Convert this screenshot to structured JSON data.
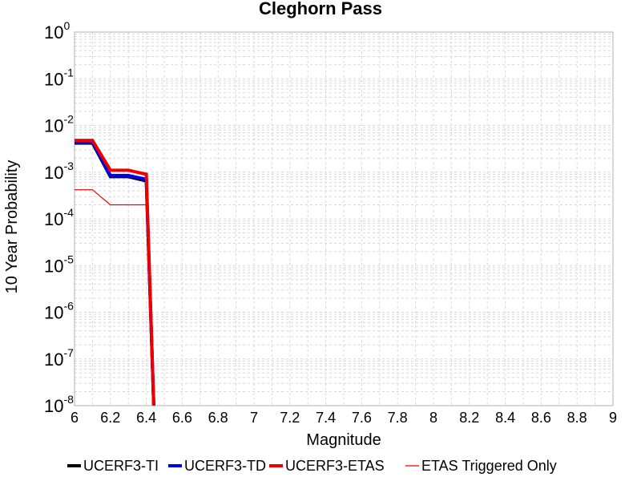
{
  "chart_data": {
    "type": "line",
    "title": "Cleghorn Pass",
    "xlabel": "Magnitude",
    "ylabel": "10 Year Probability",
    "xlim": [
      6,
      9
    ],
    "ylim": [
      1e-08,
      1
    ],
    "y_scale": "log",
    "grid": true,
    "legend_position": "bottom",
    "x_ticks": [
      "6",
      "6.2",
      "6.4",
      "6.6",
      "6.8",
      "7",
      "7.2",
      "7.4",
      "7.6",
      "7.8",
      "8",
      "8.2",
      "8.4",
      "8.6",
      "8.8",
      "9"
    ],
    "y_ticks": [
      {
        "base": "10",
        "exp": "0",
        "value": 1
      },
      {
        "base": "10",
        "exp": "-1",
        "value": 0.1
      },
      {
        "base": "10",
        "exp": "-2",
        "value": 0.01
      },
      {
        "base": "10",
        "exp": "-3",
        "value": 0.001
      },
      {
        "base": "10",
        "exp": "-4",
        "value": 0.0001
      },
      {
        "base": "10",
        "exp": "-5",
        "value": 1e-05
      },
      {
        "base": "10",
        "exp": "-6",
        "value": 1e-06
      },
      {
        "base": "10",
        "exp": "-7",
        "value": 1e-07
      },
      {
        "base": "10",
        "exp": "-8",
        "value": 1e-08
      }
    ],
    "series": [
      {
        "name": "UCERF3-TI",
        "color": "#000000",
        "width": "thick",
        "points": [
          [
            6.0,
            0.0042
          ],
          [
            6.1,
            0.0042
          ],
          [
            6.2,
            0.0008
          ],
          [
            6.3,
            0.0008
          ],
          [
            6.4,
            0.00065
          ],
          [
            6.45,
            1e-09
          ]
        ]
      },
      {
        "name": "UCERF3-TD",
        "color": "#0000ee",
        "width": "thick",
        "points": [
          [
            6.0,
            0.0044
          ],
          [
            6.1,
            0.0044
          ],
          [
            6.2,
            0.00085
          ],
          [
            6.3,
            0.00085
          ],
          [
            6.4,
            0.0007
          ],
          [
            6.45,
            1e-09
          ]
        ]
      },
      {
        "name": "UCERF3-ETAS",
        "color": "#ee0000",
        "width": "thick",
        "points": [
          [
            6.0,
            0.0048
          ],
          [
            6.1,
            0.0048
          ],
          [
            6.2,
            0.0011
          ],
          [
            6.3,
            0.0011
          ],
          [
            6.4,
            0.0009
          ],
          [
            6.45,
            1e-09
          ]
        ]
      },
      {
        "name": "ETAS Triggered Only",
        "color": "#ee0000",
        "width": "thin",
        "points": [
          [
            6.0,
            0.00042
          ],
          [
            6.1,
            0.00042
          ],
          [
            6.2,
            0.0002
          ],
          [
            6.3,
            0.0002
          ],
          [
            6.4,
            0.0002
          ],
          [
            6.45,
            1e-09
          ]
        ]
      }
    ]
  }
}
